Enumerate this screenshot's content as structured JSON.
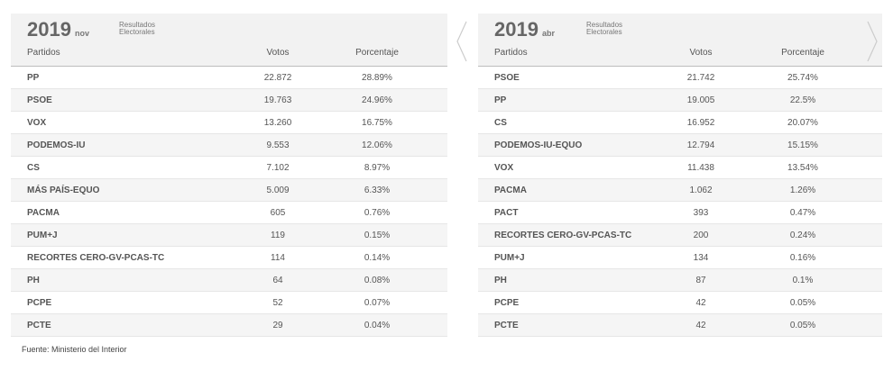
{
  "tables": [
    {
      "year": "2019",
      "month": "nov",
      "subtitle_1": "Resultados",
      "subtitle_2": "Electorales",
      "headers": {
        "party": "Partidos",
        "votes": "Votos",
        "pct": "Porcentaje"
      },
      "rows": [
        {
          "party": "PP",
          "votes": "22.872",
          "pct": "28.89%"
        },
        {
          "party": "PSOE",
          "votes": "19.763",
          "pct": "24.96%"
        },
        {
          "party": "VOX",
          "votes": "13.260",
          "pct": "16.75%"
        },
        {
          "party": "PODEMOS-IU",
          "votes": "9.553",
          "pct": "12.06%"
        },
        {
          "party": "CS",
          "votes": "7.102",
          "pct": "8.97%"
        },
        {
          "party": "MÁS PAÍS-EQUO",
          "votes": "5.009",
          "pct": "6.33%"
        },
        {
          "party": "PACMA",
          "votes": "605",
          "pct": "0.76%"
        },
        {
          "party": "PUM+J",
          "votes": "119",
          "pct": "0.15%"
        },
        {
          "party": "RECORTES CERO-GV-PCAS-TC",
          "votes": "114",
          "pct": "0.14%"
        },
        {
          "party": "PH",
          "votes": "64",
          "pct": "0.08%"
        },
        {
          "party": "PCPE",
          "votes": "52",
          "pct": "0.07%"
        },
        {
          "party": "PCTE",
          "votes": "29",
          "pct": "0.04%"
        }
      ]
    },
    {
      "year": "2019",
      "month": "abr",
      "subtitle_1": "Resultados",
      "subtitle_2": "Electorales",
      "headers": {
        "party": "Partidos",
        "votes": "Votos",
        "pct": "Porcentaje"
      },
      "rows": [
        {
          "party": "PSOE",
          "votes": "21.742",
          "pct": "25.74%"
        },
        {
          "party": "PP",
          "votes": "19.005",
          "pct": "22.5%"
        },
        {
          "party": "CS",
          "votes": "16.952",
          "pct": "20.07%"
        },
        {
          "party": "PODEMOS-IU-EQUO",
          "votes": "12.794",
          "pct": "15.15%"
        },
        {
          "party": "VOX",
          "votes": "11.438",
          "pct": "13.54%"
        },
        {
          "party": "PACMA",
          "votes": "1.062",
          "pct": "1.26%"
        },
        {
          "party": "PACT",
          "votes": "393",
          "pct": "0.47%"
        },
        {
          "party": "RECORTES CERO-GV-PCAS-TC",
          "votes": "200",
          "pct": "0.24%"
        },
        {
          "party": "PUM+J",
          "votes": "134",
          "pct": "0.16%"
        },
        {
          "party": "PH",
          "votes": "87",
          "pct": "0.1%"
        },
        {
          "party": "PCPE",
          "votes": "42",
          "pct": "0.05%"
        },
        {
          "party": "PCTE",
          "votes": "42",
          "pct": "0.05%"
        }
      ]
    }
  ],
  "footer": "Fuente: Ministerio del Interior"
}
